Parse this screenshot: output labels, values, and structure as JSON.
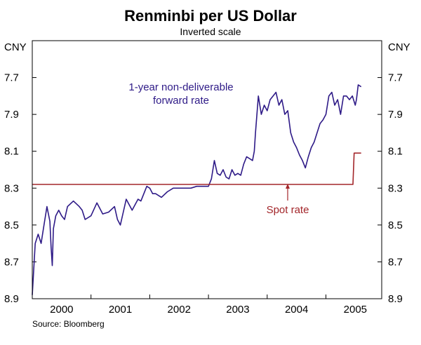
{
  "chart_data": {
    "type": "line",
    "title": "Renminbi per US Dollar",
    "subtitle": "Inverted scale",
    "unit_left": "CNY",
    "unit_right": "CNY",
    "inverted_y": true,
    "ylim": [
      7.5,
      8.9
    ],
    "yticks": [
      "7.7",
      "7.9",
      "8.1",
      "8.3",
      "8.5",
      "8.7",
      "8.9"
    ],
    "xlim": [
      1999.5,
      2005.45
    ],
    "xticks": [
      {
        "label": "2000",
        "pos": 2000.0
      },
      {
        "label": "2001",
        "pos": 2001.0
      },
      {
        "label": "2002",
        "pos": 2002.0
      },
      {
        "label": "2003",
        "pos": 2003.0
      },
      {
        "label": "2004",
        "pos": 2004.0
      },
      {
        "label": "2005",
        "pos": 2005.0
      }
    ],
    "year_boundaries": [
      1999.5,
      2000.5,
      2001.5,
      2002.5,
      2003.5,
      2004.5,
      2005.45
    ],
    "series": [
      {
        "name": "1-year non-deliverable forward rate",
        "label_lines": [
          "1-year non-deliverable",
          "forward rate"
        ],
        "color": "#2e1a87",
        "x": [
          1999.5,
          1999.55,
          1999.6,
          1999.65,
          1999.7,
          1999.75,
          1999.8,
          1999.82,
          1999.84,
          1999.86,
          1999.9,
          1999.95,
          2000.0,
          2000.05,
          2000.1,
          2000.2,
          2000.3,
          2000.35,
          2000.4,
          2000.5,
          2000.6,
          2000.7,
          2000.8,
          2000.9,
          2000.95,
          2001.0,
          2001.05,
          2001.1,
          2001.2,
          2001.3,
          2001.35,
          2001.4,
          2001.45,
          2001.5,
          2001.55,
          2001.6,
          2001.7,
          2001.8,
          2001.9,
          2002.0,
          2002.1,
          2002.2,
          2002.3,
          2002.4,
          2002.5,
          2002.55,
          2002.6,
          2002.65,
          2002.7,
          2002.75,
          2002.8,
          2002.85,
          2002.9,
          2002.95,
          2003.0,
          2003.05,
          2003.1,
          2003.15,
          2003.2,
          2003.25,
          2003.28,
          2003.3,
          2003.35,
          2003.4,
          2003.45,
          2003.5,
          2003.55,
          2003.6,
          2003.65,
          2003.7,
          2003.75,
          2003.8,
          2003.85,
          2003.9,
          2003.95,
          2004.0,
          2004.05,
          2004.1,
          2004.15,
          2004.2,
          2004.25,
          2004.3,
          2004.35,
          2004.4,
          2004.45,
          2004.5,
          2004.55,
          2004.6,
          2004.65,
          2004.7,
          2004.75,
          2004.8,
          2004.85,
          2004.9,
          2004.95,
          2005.0,
          2005.02,
          2005.05,
          2005.1
        ],
        "y": [
          8.88,
          8.6,
          8.55,
          8.6,
          8.5,
          8.4,
          8.48,
          8.62,
          8.72,
          8.52,
          8.45,
          8.42,
          8.45,
          8.47,
          8.4,
          8.37,
          8.4,
          8.42,
          8.47,
          8.45,
          8.38,
          8.44,
          8.43,
          8.4,
          8.47,
          8.5,
          8.43,
          8.36,
          8.42,
          8.36,
          8.37,
          8.33,
          8.29,
          8.3,
          8.33,
          8.33,
          8.35,
          8.32,
          8.3,
          8.3,
          8.3,
          8.3,
          8.29,
          8.29,
          8.29,
          8.25,
          8.15,
          8.22,
          8.23,
          8.2,
          8.24,
          8.25,
          8.2,
          8.23,
          8.22,
          8.23,
          8.17,
          8.13,
          8.14,
          8.15,
          8.1,
          8.0,
          7.8,
          7.9,
          7.85,
          7.88,
          7.82,
          7.8,
          7.78,
          7.85,
          7.82,
          7.9,
          7.88,
          8.0,
          8.05,
          8.08,
          8.12,
          8.15,
          8.19,
          8.13,
          8.08,
          8.05,
          8.0,
          7.95,
          7.93,
          7.9,
          7.8,
          7.78,
          7.85,
          7.82,
          7.9,
          7.8,
          7.8,
          7.82,
          7.8,
          7.85,
          7.82,
          7.74,
          7.75
        ]
      },
      {
        "name": "Spot rate",
        "label_lines": [
          "Spot rate"
        ],
        "color": "#a3262a",
        "x": [
          1999.5,
          2004.96,
          2004.98,
          2005.0,
          2005.1
        ],
        "y": [
          8.28,
          8.28,
          8.11,
          8.11,
          8.11
        ]
      }
    ],
    "source": "Source: Bloomberg"
  }
}
